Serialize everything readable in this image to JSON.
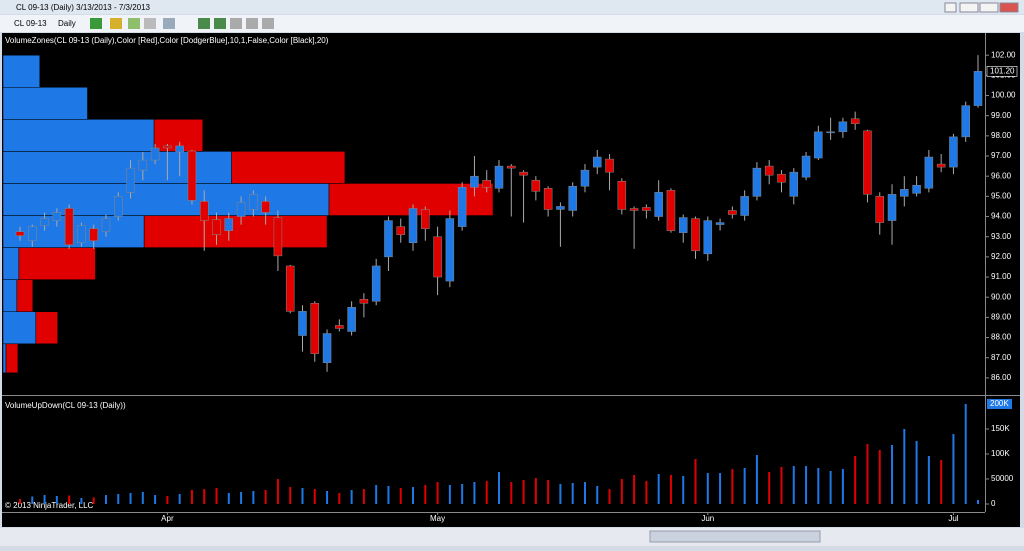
{
  "window": {
    "title": "CL 09-13 (Daily)  3/13/2013 - 7/3/2013"
  },
  "toolbar": {
    "instrument": "CL 09-13",
    "period": "Daily"
  },
  "footer": "© 2013 NinjaTrader, LLC",
  "chart_data": [
    {
      "type": "candlestick",
      "indicator": "VolumeZones(CL 09-13 (Daily),Color [Red],Color [DodgerBlue],10,1,False,Color [Black],20)",
      "up_color": "#1e78e6",
      "down_color": "#e00000",
      "open": [
        93.25,
        92.8,
        93.55,
        93.8,
        94.4,
        92.7,
        93.4,
        93.25,
        94.0,
        95.2,
        96.3,
        96.8,
        97.5,
        97.2,
        97.25,
        94.75,
        93.85,
        93.3,
        94.0,
        94.35,
        94.75,
        93.95,
        91.55,
        88.1,
        89.7,
        86.75,
        88.6,
        88.3,
        89.9,
        89.8,
        92.0,
        93.5,
        92.7,
        94.35,
        93.0,
        90.8,
        93.5,
        95.45,
        95.8,
        95.4,
        96.5,
        96.2,
        95.8,
        95.4,
        94.35,
        94.3,
        95.5,
        96.45,
        96.85,
        95.75,
        94.4,
        94.45,
        94.0,
        95.3,
        93.2,
        93.9,
        92.15,
        93.6,
        94.3,
        94.05,
        95.0,
        96.5,
        96.1,
        95.0,
        95.95,
        96.9,
        98.15,
        98.2,
        98.85,
        98.25,
        95.0,
        93.8,
        95.0,
        95.15,
        95.4,
        96.6,
        96.45,
        97.95,
        99.5
      ],
      "high": [
        93.5,
        93.6,
        94.2,
        94.4,
        94.6,
        93.7,
        93.6,
        94.1,
        95.2,
        96.8,
        97.2,
        97.6,
        97.6,
        97.7,
        97.3,
        95.3,
        94.2,
        94.2,
        95.0,
        95.3,
        95.0,
        94.3,
        91.6,
        89.6,
        89.8,
        88.4,
        88.9,
        89.8,
        90.2,
        91.9,
        94.0,
        93.9,
        94.6,
        94.5,
        93.5,
        94.3,
        95.7,
        97.0,
        96.3,
        96.8,
        96.6,
        96.3,
        96.0,
        95.5,
        94.7,
        95.7,
        96.6,
        97.3,
        97.1,
        95.9,
        94.5,
        94.6,
        95.8,
        95.4,
        94.1,
        94.0,
        94.0,
        93.9,
        94.5,
        95.3,
        96.7,
        96.8,
        96.3,
        96.4,
        97.2,
        98.5,
        98.9,
        98.9,
        99.2,
        98.3,
        95.2,
        95.6,
        96.0,
        96.0,
        97.3,
        97.1,
        98.1,
        99.7,
        102.0
      ],
      "low": [
        92.8,
        92.5,
        93.3,
        93.5,
        92.4,
        92.5,
        92.4,
        93.0,
        93.8,
        94.9,
        95.8,
        96.6,
        95.8,
        96.0,
        94.6,
        92.3,
        92.6,
        92.8,
        93.6,
        94.0,
        93.6,
        91.3,
        89.2,
        87.3,
        86.8,
        86.3,
        88.3,
        88.1,
        89.0,
        89.6,
        91.3,
        92.7,
        92.3,
        92.8,
        90.1,
        90.5,
        93.3,
        95.0,
        95.2,
        95.2,
        94.0,
        93.7,
        94.8,
        94.0,
        92.5,
        94.0,
        95.2,
        96.1,
        95.3,
        94.1,
        92.4,
        93.9,
        93.8,
        93.2,
        92.7,
        91.9,
        91.8,
        93.3,
        93.9,
        93.8,
        94.8,
        95.6,
        95.2,
        94.6,
        95.8,
        96.8,
        97.8,
        97.9,
        98.3,
        94.7,
        93.1,
        92.6,
        94.5,
        95.0,
        95.2,
        96.2,
        96.1,
        97.7,
        99.4
      ],
      "close": [
        93.05,
        93.5,
        93.9,
        94.2,
        92.6,
        93.55,
        92.8,
        93.9,
        95.0,
        96.4,
        96.8,
        97.4,
        97.4,
        97.5,
        94.8,
        93.8,
        93.1,
        93.9,
        94.7,
        95.1,
        94.2,
        92.05,
        89.3,
        89.3,
        87.2,
        88.2,
        88.45,
        89.5,
        89.7,
        91.55,
        93.8,
        93.1,
        94.4,
        93.4,
        91.0,
        93.9,
        95.45,
        96.0,
        95.45,
        96.5,
        96.4,
        96.05,
        95.25,
        94.35,
        94.5,
        95.5,
        96.3,
        96.95,
        96.2,
        94.35,
        94.3,
        94.3,
        95.2,
        93.3,
        93.95,
        92.3,
        93.8,
        93.7,
        94.1,
        95.0,
        96.4,
        96.05,
        95.7,
        96.2,
        97.0,
        98.2,
        98.2,
        98.7,
        98.6,
        95.1,
        93.7,
        95.1,
        95.35,
        95.55,
        96.95,
        96.45,
        97.95,
        99.5,
        101.2
      ],
      "ylim": [
        85.3,
        103.1
      ],
      "yticks": [
        {
          "value": 86,
          "label": "86.00"
        },
        {
          "value": 87,
          "label": "87.00"
        },
        {
          "value": 88,
          "label": "88.00"
        },
        {
          "value": 89,
          "label": "89.00"
        },
        {
          "value": 90,
          "label": "90.00"
        },
        {
          "value": 91,
          "label": "91.00"
        },
        {
          "value": 92,
          "label": "92.00"
        },
        {
          "value": 93,
          "label": "93.00"
        },
        {
          "value": 94,
          "label": "94.00"
        },
        {
          "value": 95,
          "label": "95.00"
        },
        {
          "value": 96,
          "label": "96.00"
        },
        {
          "value": 97,
          "label": "97.00"
        },
        {
          "value": 98,
          "label": "98.00"
        },
        {
          "value": 99,
          "label": "99.00"
        },
        {
          "value": 100,
          "label": "100.00"
        },
        {
          "value": 101,
          "label": "101.00"
        },
        {
          "value": 102,
          "label": "102.00"
        }
      ],
      "marker": {
        "value": 101.2,
        "label": "101.20"
      },
      "volume_zones": {
        "bins": [
          86.25,
          87.69,
          89.28,
          90.87,
          92.46,
          94.05,
          95.64,
          97.23,
          98.82,
          100.41,
          102.0
        ],
        "up": [
          3,
          33,
          14,
          16,
          142,
          328,
          230,
          152,
          85,
          37
        ],
        "down": [
          12,
          22,
          16,
          77,
          184,
          165,
          114,
          49,
          0,
          0
        ]
      }
    },
    {
      "type": "bar",
      "title": "VolumeUpDown(CL 09-13 (Daily))",
      "categories": [
        null,
        null,
        null,
        null,
        null,
        null,
        null,
        null,
        null,
        null,
        null,
        null,
        "Apr",
        null,
        null,
        null,
        null,
        null,
        null,
        null,
        null,
        null,
        null,
        null,
        null,
        null,
        null,
        null,
        null,
        null,
        null,
        null,
        null,
        null,
        "May",
        null,
        null,
        null,
        null,
        null,
        null,
        null,
        null,
        null,
        null,
        null,
        null,
        null,
        null,
        null,
        null,
        null,
        null,
        null,
        null,
        null,
        "Jun",
        null,
        null,
        null,
        null,
        null,
        null,
        null,
        null,
        null,
        null,
        null,
        null,
        null,
        null,
        null,
        null,
        null,
        null,
        null,
        "Jul",
        null,
        null
      ],
      "values": [
        10000,
        15000,
        18000,
        16000,
        17000,
        12000,
        13000,
        18000,
        20000,
        22000,
        24000,
        18000,
        16000,
        20000,
        28000,
        30000,
        32000,
        22000,
        24000,
        26000,
        28000,
        50000,
        34000,
        32000,
        30000,
        26000,
        22000,
        28000,
        30000,
        38000,
        36000,
        32000,
        34000,
        38000,
        44000,
        38000,
        40000,
        44000,
        46000,
        64000,
        44000,
        48000,
        52000,
        48000,
        40000,
        42000,
        44000,
        36000,
        30000,
        50000,
        58000,
        46000,
        60000,
        58000,
        56000,
        90000,
        62000,
        62000,
        70000,
        72000,
        98000,
        64000,
        74000,
        76000,
        76000,
        72000,
        66000,
        70000,
        96000,
        120000,
        108000,
        118000,
        150000,
        126000,
        96000,
        88000,
        140000,
        200000,
        8000
      ],
      "ylim": [
        0,
        208000
      ],
      "yticks": [
        0,
        50000,
        {
          "value": 100000,
          "label": "100K"
        },
        {
          "value": 150000,
          "label": "150K"
        }
      ],
      "marker": {
        "value": 200000,
        "label": "200K"
      }
    }
  ]
}
